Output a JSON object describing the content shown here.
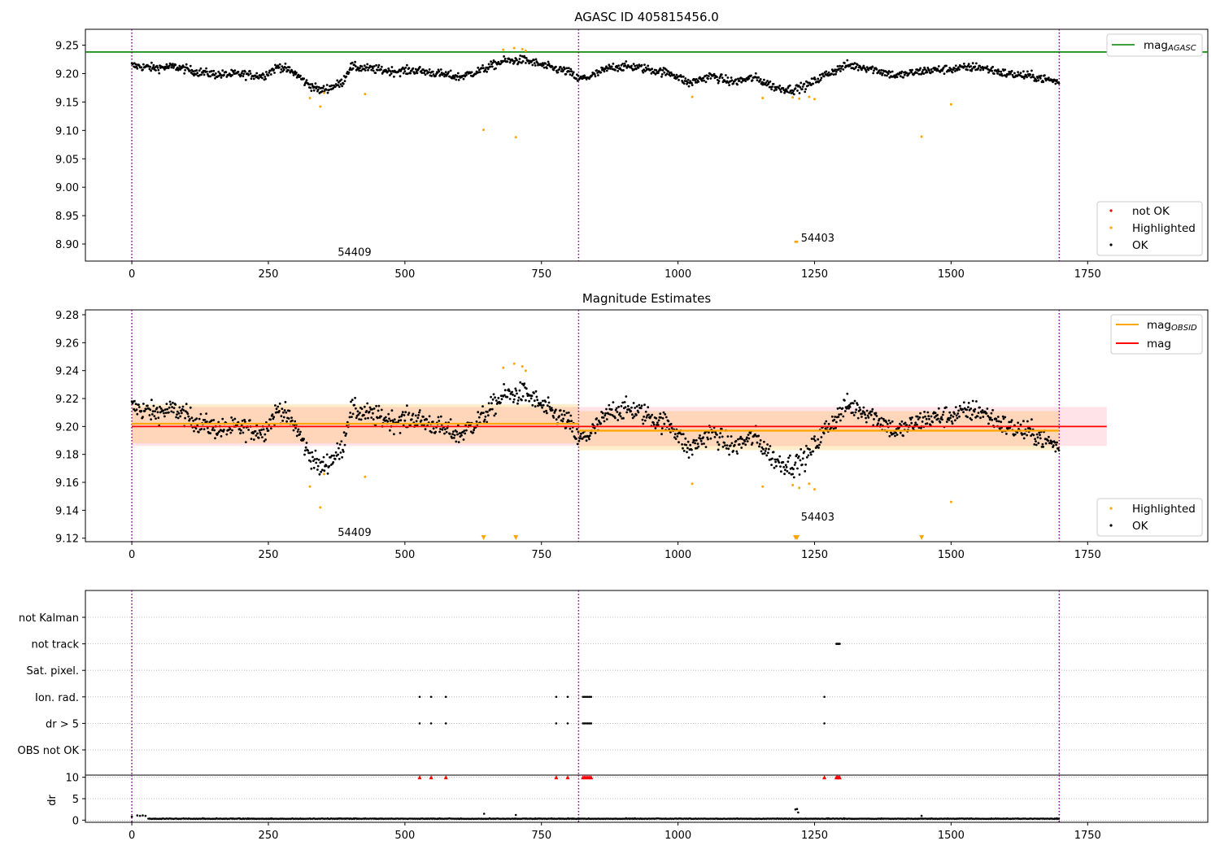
{
  "chart_data": [
    {
      "type": "scatter",
      "title": "AGASC ID 405815456.0",
      "xlabel": "",
      "ylabel": "",
      "xlim": [
        -85,
        1970
      ],
      "ylim": [
        8.87,
        9.278
      ],
      "xticks": [
        0,
        250,
        500,
        750,
        1000,
        1250,
        1500,
        1750
      ],
      "yticks": [
        8.9,
        8.95,
        9.0,
        9.05,
        9.1,
        9.15,
        9.2,
        9.25
      ],
      "grid": false,
      "vlines": [
        0,
        818,
        1698
      ],
      "hline": {
        "name": "mag",
        "sub": "AGASC",
        "y": 9.238,
        "color": "#008000"
      },
      "legends": {
        "top-right": [
          {
            "name": "mag",
            "sub": "AGASC",
            "color": "#008000",
            "kind": "line"
          }
        ],
        "bottom-right": [
          {
            "name": "not OK",
            "color": "#ff0000",
            "kind": "dot"
          },
          {
            "name": "Highlighted",
            "color": "#ffa500",
            "kind": "dot"
          },
          {
            "name": "OK",
            "color": "#000000",
            "kind": "dot"
          }
        ]
      },
      "annotations": [
        {
          "text": "54409",
          "x": 377,
          "y": 8.885
        },
        {
          "text": "54403",
          "x": 1225,
          "y": 8.91
        }
      ],
      "series": [
        {
          "name": "OK",
          "color": "#000000",
          "ok_segments": [
            [
              0,
              9.214
            ],
            [
              40,
              9.21
            ],
            [
              80,
              9.212
            ],
            [
              120,
              9.203
            ],
            [
              160,
              9.198
            ],
            [
              200,
              9.199
            ],
            [
              240,
              9.196
            ],
            [
              270,
              9.213
            ],
            [
              300,
              9.2
            ],
            [
              320,
              9.183
            ],
            [
              345,
              9.17
            ],
            [
              370,
              9.178
            ],
            [
              385,
              9.184
            ],
            [
              400,
              9.212
            ],
            [
              440,
              9.208
            ],
            [
              480,
              9.204
            ],
            [
              520,
              9.206
            ],
            [
              560,
              9.2
            ],
            [
              600,
              9.194
            ],
            [
              640,
              9.206
            ],
            [
              680,
              9.222
            ],
            [
              720,
              9.224
            ],
            [
              760,
              9.212
            ],
            [
              800,
              9.203
            ],
            [
              818,
              9.19
            ],
            [
              840,
              9.195
            ],
            [
              880,
              9.212
            ],
            [
              920,
              9.212
            ],
            [
              960,
              9.205
            ],
            [
              990,
              9.2
            ],
            [
              1020,
              9.183
            ],
            [
              1060,
              9.196
            ],
            [
              1100,
              9.185
            ],
            [
              1140,
              9.193
            ],
            [
              1180,
              9.175
            ],
            [
              1210,
              9.172
            ],
            [
              1235,
              9.178
            ],
            [
              1270,
              9.198
            ],
            [
              1310,
              9.215
            ],
            [
              1350,
              9.21
            ],
            [
              1400,
              9.196
            ],
            [
              1450,
              9.205
            ],
            [
              1500,
              9.208
            ],
            [
              1550,
              9.212
            ],
            [
              1600,
              9.2
            ],
            [
              1650,
              9.195
            ],
            [
              1698,
              9.185
            ]
          ]
        },
        {
          "name": "Highlighted",
          "color": "#ffa500",
          "points": [
            [
              326,
              9.157
            ],
            [
              345,
              9.142
            ],
            [
              352,
              9.166
            ],
            [
              427,
              9.164
            ],
            [
              644,
              9.101
            ],
            [
              680,
              9.242
            ],
            [
              700,
              9.245
            ],
            [
              703,
              9.088
            ],
            [
              715,
              9.243
            ],
            [
              721,
              9.24
            ],
            [
              1026,
              9.159
            ],
            [
              1155,
              9.157
            ],
            [
              1210,
              9.158
            ],
            [
              1215,
              8.904
            ],
            [
              1218,
              8.904
            ],
            [
              1222,
              9.156
            ],
            [
              1240,
              9.159
            ],
            [
              1250,
              9.155
            ],
            [
              1446,
              9.089
            ],
            [
              1500,
              9.146
            ]
          ]
        }
      ]
    },
    {
      "type": "scatter",
      "title": "Magnitude Estimates",
      "xlabel": "",
      "ylabel": "",
      "xlim": [
        -85,
        1970
      ],
      "ylim": [
        9.1175,
        9.2835
      ],
      "xticks": [
        0,
        250,
        500,
        750,
        1000,
        1250,
        1500,
        1750
      ],
      "yticks": [
        9.12,
        9.14,
        9.16,
        9.18,
        9.2,
        9.22,
        9.24,
        9.26,
        9.28
      ],
      "grid": false,
      "vlines": [
        0,
        818,
        1698
      ],
      "mag_line": {
        "name": "mag",
        "y": 9.2,
        "band": [
          9.186,
          9.214
        ],
        "x_range": [
          0,
          1785
        ],
        "color": "#ff0000"
      },
      "obsid_lines": [
        {
          "x_range": [
            0,
            818
          ],
          "y": 9.202,
          "band": [
            9.188,
            9.216
          ]
        },
        {
          "x_range": [
            818,
            1698
          ],
          "y": 9.197,
          "band": [
            9.183,
            9.211
          ]
        }
      ],
      "legends": {
        "top-right": [
          {
            "name": "mag",
            "sub": "OBSID",
            "color": "#ffa500",
            "kind": "line"
          },
          {
            "name": "mag",
            "color": "#ff0000",
            "kind": "line"
          }
        ],
        "bottom-right": [
          {
            "name": "Highlighted",
            "color": "#ffa500",
            "kind": "dot"
          },
          {
            "name": "OK",
            "color": "#000000",
            "kind": "dot"
          }
        ]
      },
      "annotations": [
        {
          "text": "54409",
          "x": 377,
          "y": 9.124
        },
        {
          "text": "54403",
          "x": 1225,
          "y": 9.135
        }
      ],
      "series": [
        {
          "name": "Highlighted (below axis)",
          "color": "#ffa500",
          "marker": "triangle-down",
          "points": [
            [
              644,
              9.12
            ],
            [
              703,
              9.12
            ],
            [
              1215,
              9.12
            ],
            [
              1218,
              9.12
            ],
            [
              1446,
              9.12
            ]
          ]
        }
      ]
    },
    {
      "type": "scatter",
      "title": "",
      "xlabel": "",
      "ylabel": "",
      "xlim": [
        -85,
        1970
      ],
      "grid": true,
      "vlines": [
        0,
        818,
        1698
      ],
      "flag_rows": [
        "not Kalman",
        "not track",
        "Sat. pixel.",
        "Ion. rad.",
        "dr > 5",
        "OBS not OK"
      ],
      "flags": {
        "not track": [
          1290,
          1292,
          1294,
          1296
        ],
        "Ion. rad.": [
          527,
          548,
          575,
          777,
          798,
          826,
          829,
          832,
          835,
          838,
          841,
          1268
        ],
        "dr > 5": [
          527,
          548,
          575,
          777,
          798,
          826,
          829,
          832,
          835,
          838,
          841,
          1268
        ]
      }
    },
    {
      "type": "scatter",
      "title": "",
      "xlabel": "",
      "ylabel": "dr",
      "xlim": [
        -85,
        1970
      ],
      "ylim": [
        -0.5,
        10.5
      ],
      "xticks": [
        0,
        250,
        500,
        750,
        1000,
        1250,
        1500,
        1750
      ],
      "yticks": [
        0,
        5,
        10
      ],
      "grid": true,
      "vlines": [
        0,
        818,
        1698
      ],
      "clipped_points": [
        527,
        548,
        575,
        777,
        798,
        826,
        829,
        832,
        835,
        838,
        841,
        1268,
        1290,
        1292,
        1294,
        1296
      ],
      "clipped_color": "#ff0000",
      "spikes": [
        [
          0,
          0.8
        ],
        [
          10,
          1.1
        ],
        [
          15,
          1.0
        ],
        [
          20,
          1.1
        ],
        [
          25,
          1.0
        ],
        [
          645,
          1.5
        ],
        [
          703,
          1.2
        ],
        [
          1215,
          2.5
        ],
        [
          1218,
          2.6
        ],
        [
          1220,
          1.8
        ],
        [
          1446,
          1.0
        ]
      ]
    }
  ]
}
